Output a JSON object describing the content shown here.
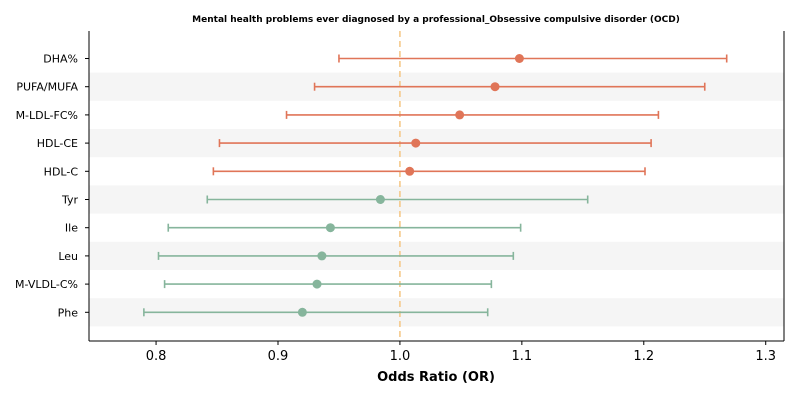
{
  "chart_data": {
    "type": "forest",
    "title": "Mental health problems ever diagnosed by a professional_Obsessive compulsive disorder (OCD)",
    "xlabel": "Odds Ratio (OR)",
    "xlim": [
      0.745,
      1.315
    ],
    "xticks": [
      "0.8",
      "0.9",
      "1.0",
      "1.1",
      "1.2",
      "1.3"
    ],
    "reference_line": 1.0,
    "band_shading": true,
    "colors": {
      "positive": "#e07558",
      "negative": "#86b59c",
      "reference": "#f5c98a",
      "band": "#f5f5f5"
    },
    "rows": [
      {
        "label": "DHA%",
        "or": 1.098,
        "lo": 0.95,
        "hi": 1.268,
        "group": "positive"
      },
      {
        "label": "PUFA/MUFA",
        "or": 1.078,
        "lo": 0.93,
        "hi": 1.25,
        "group": "positive"
      },
      {
        "label": "M-LDL-FC%",
        "or": 1.049,
        "lo": 0.907,
        "hi": 1.212,
        "group": "positive"
      },
      {
        "label": "HDL-CE",
        "or": 1.013,
        "lo": 0.852,
        "hi": 1.206,
        "group": "positive"
      },
      {
        "label": "HDL-C",
        "or": 1.008,
        "lo": 0.847,
        "hi": 1.201,
        "group": "positive"
      },
      {
        "label": "Tyr",
        "or": 0.984,
        "lo": 0.842,
        "hi": 1.154,
        "group": "negative"
      },
      {
        "label": "Ile",
        "or": 0.943,
        "lo": 0.81,
        "hi": 1.099,
        "group": "negative"
      },
      {
        "label": "Leu",
        "or": 0.936,
        "lo": 0.802,
        "hi": 1.093,
        "group": "negative"
      },
      {
        "label": "M-VLDL-C%",
        "or": 0.932,
        "lo": 0.807,
        "hi": 1.075,
        "group": "negative"
      },
      {
        "label": "Phe",
        "or": 0.92,
        "lo": 0.79,
        "hi": 1.072,
        "group": "negative"
      }
    ]
  }
}
